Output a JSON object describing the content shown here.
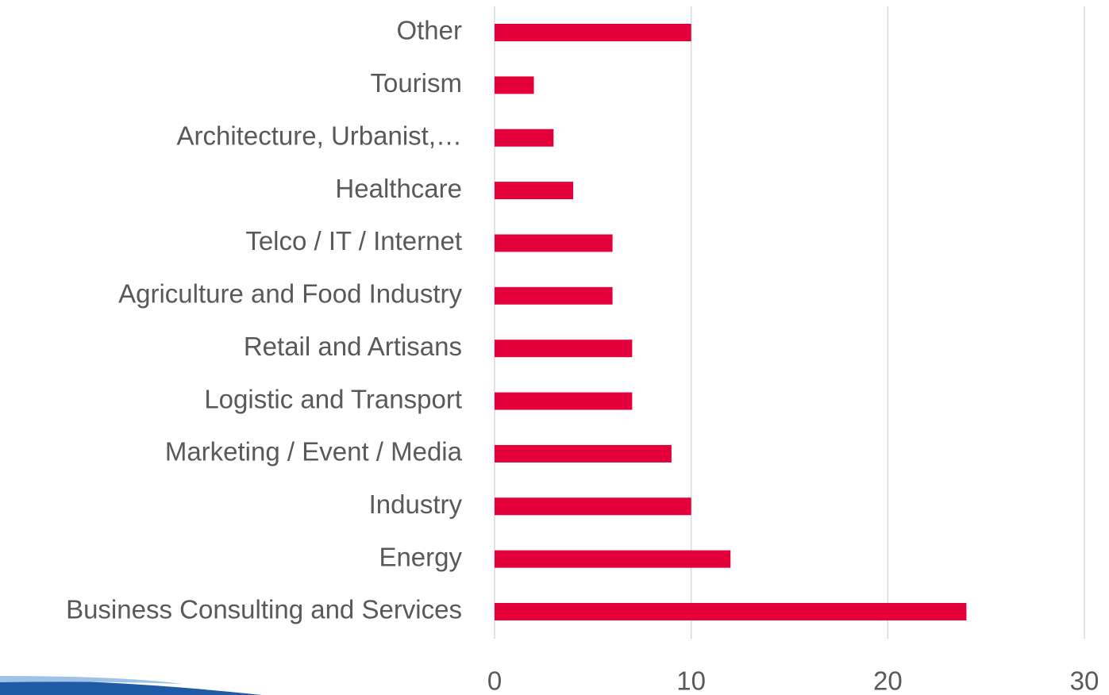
{
  "chart_data": {
    "type": "bar",
    "orientation": "horizontal",
    "categories": [
      "Other",
      "Tourism",
      "Architecture, Urbanist,…",
      "Healthcare",
      "Telco / IT / Internet",
      "Agriculture and Food Industry",
      "Retail and Artisans",
      "Logistic and Transport",
      "Marketing / Event / Media",
      "Industry",
      "Energy",
      "Business Consulting and Services"
    ],
    "values": [
      10,
      2,
      3,
      4,
      6,
      6,
      7,
      7,
      9,
      10,
      12,
      24
    ],
    "color": "#e4003b",
    "xlim": [
      0,
      30
    ],
    "xticks": [
      0,
      10,
      20,
      30
    ],
    "grid": true
  }
}
